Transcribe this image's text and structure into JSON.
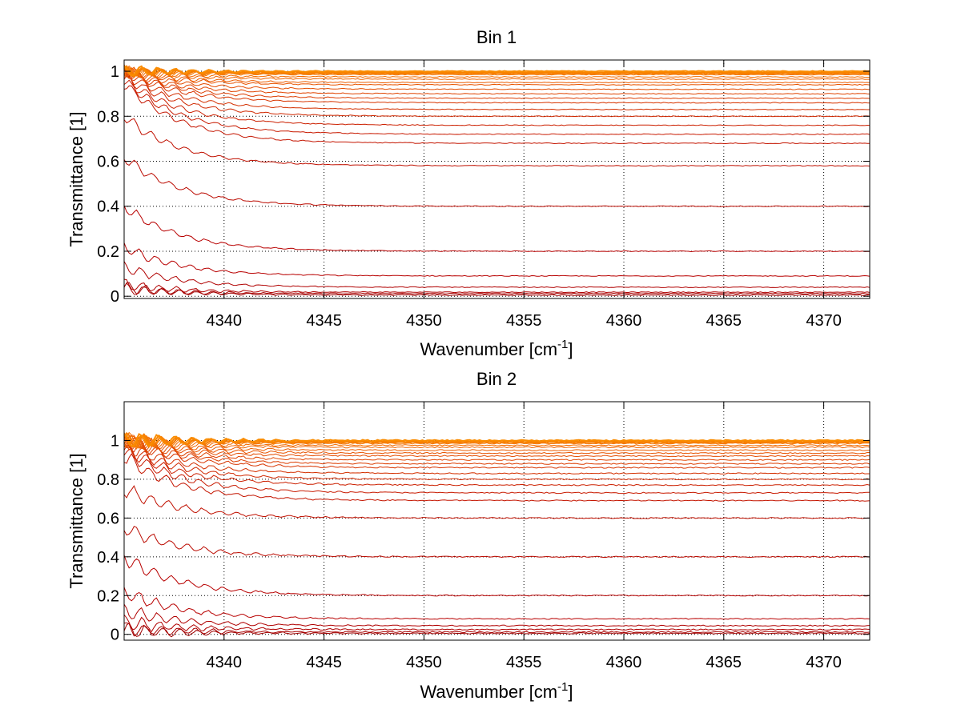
{
  "chart_data": [
    {
      "type": "line",
      "title": "Bin 1",
      "xlabel_main": "Wavenumber [cm",
      "xlabel_sup": "-1",
      "xlabel_end": "]",
      "ylabel": "Transmittance [1]",
      "xlim": [
        4335,
        4372.3
      ],
      "ylim": [
        -0.01,
        1.05
      ],
      "xticks": [
        4340,
        4345,
        4350,
        4355,
        4360,
        4365,
        4370
      ],
      "yticks": [
        0,
        0.2,
        0.4,
        0.6,
        0.8,
        1
      ],
      "ytick_labels": [
        "0",
        "0.2",
        "0.4",
        "0.6",
        "0.8",
        "1"
      ],
      "grid": true,
      "noise_scale": 0.6,
      "series": [
        {
          "start": 0.04,
          "end": 0.005,
          "color": "#a00000"
        },
        {
          "start": 0.03,
          "end": 0.012,
          "color": "#a80000"
        },
        {
          "start": 0.05,
          "end": 0.018,
          "color": "#b00000"
        },
        {
          "start": 0.13,
          "end": 0.04,
          "color": "#b00000"
        },
        {
          "start": 0.22,
          "end": 0.09,
          "color": "#b80000"
        },
        {
          "start": 0.4,
          "end": 0.2,
          "color": "#b80000"
        },
        {
          "start": 0.62,
          "end": 0.4,
          "color": "#bb0a00"
        },
        {
          "start": 0.8,
          "end": 0.58,
          "color": "#c01000"
        },
        {
          "start": 0.95,
          "end": 0.68,
          "color": "#c41500"
        },
        {
          "start": 0.96,
          "end": 0.72,
          "color": "#c81a00"
        },
        {
          "start": 0.97,
          "end": 0.76,
          "color": "#cc2000"
        },
        {
          "start": 0.98,
          "end": 0.8,
          "color": "#d02800"
        },
        {
          "start": 0.99,
          "end": 0.83,
          "color": "#d43000"
        },
        {
          "start": 1.0,
          "end": 0.86,
          "color": "#d83500"
        },
        {
          "start": 1.0,
          "end": 0.88,
          "color": "#dc3c00"
        },
        {
          "start": 1.0,
          "end": 0.9,
          "color": "#e04400"
        },
        {
          "start": 1.0,
          "end": 0.92,
          "color": "#e44c00"
        },
        {
          "start": 1.0,
          "end": 0.94,
          "color": "#e85400"
        },
        {
          "start": 1.0,
          "end": 0.95,
          "color": "#ec5c00"
        },
        {
          "start": 1.0,
          "end": 0.965,
          "color": "#f06400"
        },
        {
          "start": 1.0,
          "end": 0.975,
          "color": "#f26c00"
        },
        {
          "start": 1.0,
          "end": 0.985,
          "color": "#f47400"
        },
        {
          "start": 1.0,
          "end": 0.99,
          "color": "#f67c00"
        },
        {
          "start": 1.0,
          "end": 0.995,
          "color": "#f88400"
        },
        {
          "start": 1.0,
          "end": 1.0,
          "color": "#fa8c00"
        }
      ]
    },
    {
      "type": "line",
      "title": "Bin 2",
      "xlabel_main": "Wavenumber [cm",
      "xlabel_sup": "-1",
      "xlabel_end": "]",
      "ylabel": "Transmittance [1]",
      "xlim": [
        4335,
        4372.3
      ],
      "ylim": [
        -0.03,
        1.2
      ],
      "xticks": [
        4340,
        4345,
        4350,
        4355,
        4360,
        4365,
        4370
      ],
      "yticks": [
        0,
        0.2,
        0.4,
        0.6,
        0.8,
        1
      ],
      "ytick_labels": [
        "0",
        "0.2",
        "0.4",
        "0.6",
        "0.8",
        "1"
      ],
      "grid": true,
      "noise_scale": 1.0,
      "series": [
        {
          "start": 0.02,
          "end": 0.005,
          "color": "#a00000"
        },
        {
          "start": 0.03,
          "end": 0.012,
          "color": "#a80000"
        },
        {
          "start": 0.06,
          "end": 0.025,
          "color": "#b00000"
        },
        {
          "start": 0.12,
          "end": 0.045,
          "color": "#b00000"
        },
        {
          "start": 0.22,
          "end": 0.08,
          "color": "#b80000"
        },
        {
          "start": 0.4,
          "end": 0.2,
          "color": "#b80000"
        },
        {
          "start": 0.55,
          "end": 0.4,
          "color": "#bb0a00"
        },
        {
          "start": 0.75,
          "end": 0.6,
          "color": "#c01000"
        },
        {
          "start": 0.92,
          "end": 0.69,
          "color": "#c41500"
        },
        {
          "start": 0.95,
          "end": 0.73,
          "color": "#c81a00"
        },
        {
          "start": 0.96,
          "end": 0.77,
          "color": "#cc2000"
        },
        {
          "start": 0.97,
          "end": 0.8,
          "color": "#d02800"
        },
        {
          "start": 0.98,
          "end": 0.83,
          "color": "#d43000"
        },
        {
          "start": 1.0,
          "end": 0.86,
          "color": "#d83500"
        },
        {
          "start": 1.0,
          "end": 0.88,
          "color": "#dc3c00"
        },
        {
          "start": 1.0,
          "end": 0.9,
          "color": "#e04400"
        },
        {
          "start": 1.0,
          "end": 0.92,
          "color": "#e44c00"
        },
        {
          "start": 1.0,
          "end": 0.935,
          "color": "#e85400"
        },
        {
          "start": 1.0,
          "end": 0.95,
          "color": "#ec5c00"
        },
        {
          "start": 1.0,
          "end": 0.965,
          "color": "#f06400"
        },
        {
          "start": 1.0,
          "end": 0.975,
          "color": "#f26c00"
        },
        {
          "start": 1.0,
          "end": 0.985,
          "color": "#f47400"
        },
        {
          "start": 1.0,
          "end": 0.99,
          "color": "#f67c00"
        },
        {
          "start": 1.0,
          "end": 0.995,
          "color": "#f88400"
        },
        {
          "start": 1.0,
          "end": 1.0,
          "color": "#fa8c00"
        }
      ]
    }
  ]
}
